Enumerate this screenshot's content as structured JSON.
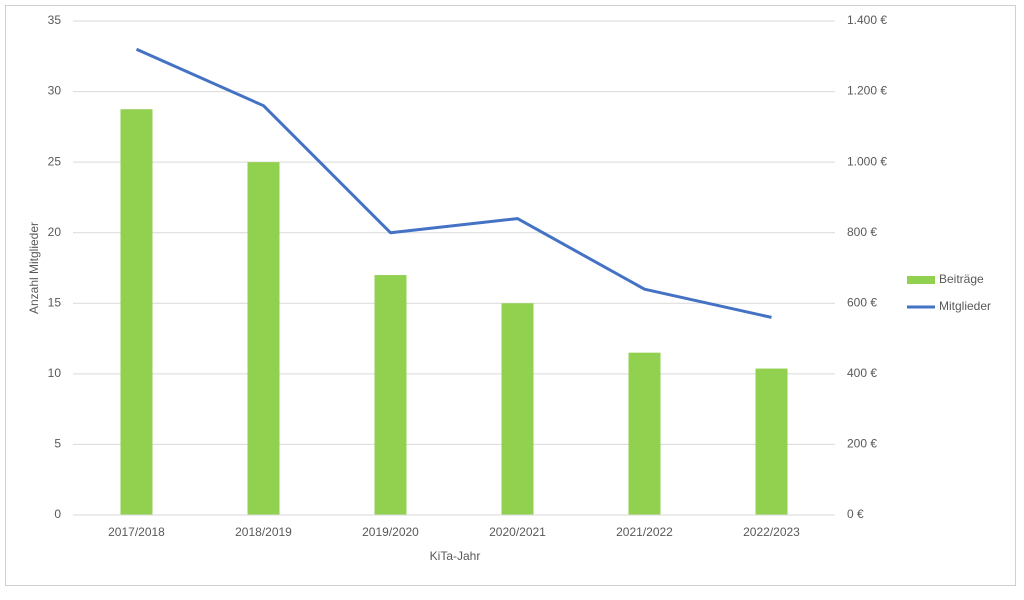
{
  "chart_data": {
    "type": "combo",
    "x_label": "KiTa-Jahr",
    "y_label": "Anzahl Mitglieder",
    "categories": [
      "2017/2018",
      "2018/2019",
      "2019/2020",
      "2020/2021",
      "2021/2022",
      "2022/2023"
    ],
    "series": [
      {
        "name": "Beiträge",
        "type": "bar",
        "axis": "y2",
        "color": "#92d050",
        "values": [
          1150,
          1000,
          680,
          600,
          460,
          415
        ]
      },
      {
        "name": "Mitglieder",
        "type": "line",
        "color": "#4472c4",
        "values": [
          33,
          29,
          20,
          21,
          16,
          14
        ]
      }
    ],
    "ylim": [
      0,
      35
    ],
    "yticks": [
      0,
      5,
      10,
      15,
      20,
      25,
      30,
      35
    ],
    "y2lim": [
      0,
      1400
    ],
    "y2ticks": [
      {
        "value": 0,
        "label": "0 €"
      },
      {
        "value": 200,
        "label": "200 €"
      },
      {
        "value": 400,
        "label": "400 €"
      },
      {
        "value": 600,
        "label": "600 €"
      },
      {
        "value": 800,
        "label": "800 €"
      },
      {
        "value": 1000,
        "label": "1.000 €"
      },
      {
        "value": 1200,
        "label": "1.200 €"
      },
      {
        "value": 1400,
        "label": "1.400 €"
      }
    ],
    "grid": true,
    "legend": "right"
  }
}
